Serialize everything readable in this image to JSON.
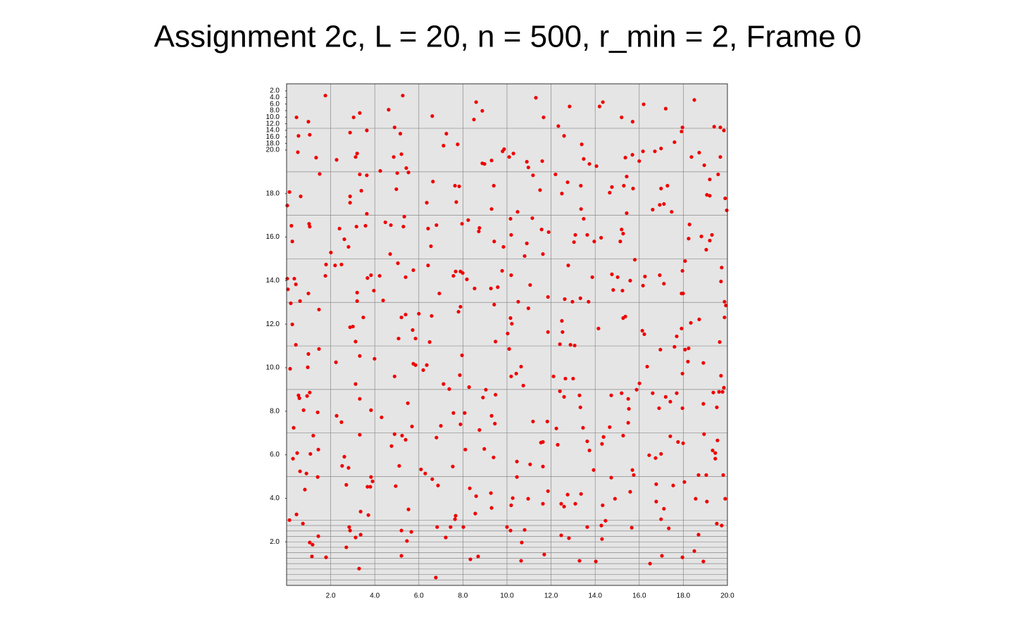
{
  "chart_data": {
    "type": "scatter",
    "title": "Assignment 2c, L = 20, n = 500, r_min = 2, Frame 0",
    "xlim": [
      0,
      20
    ],
    "ylim": [
      0,
      23.04
    ],
    "xticks": [
      {
        "value": 2,
        "label": "2.0"
      },
      {
        "value": 4,
        "label": "4.0"
      },
      {
        "value": 6,
        "label": "6.0"
      },
      {
        "value": 8,
        "label": "8.0"
      },
      {
        "value": 10,
        "label": "10.0"
      },
      {
        "value": 12,
        "label": "12.0"
      },
      {
        "value": 14,
        "label": "14.0"
      },
      {
        "value": 16,
        "label": "16.0"
      },
      {
        "value": 18,
        "label": "18.0"
      },
      {
        "value": 20,
        "label": "20.0"
      }
    ],
    "yticks": [
      {
        "value": 2,
        "label": "2.0"
      },
      {
        "value": 4,
        "label": "4.0"
      },
      {
        "value": 6,
        "label": "6.0"
      },
      {
        "value": 8,
        "label": "8.0"
      },
      {
        "value": 10,
        "label": "10.0"
      },
      {
        "value": 12,
        "label": "12.0"
      },
      {
        "value": 14,
        "label": "14.0"
      },
      {
        "value": 16,
        "label": "16.0"
      },
      {
        "value": 18,
        "label": "18.0"
      }
    ],
    "y2lim": [
      152.4,
      -0.14
    ],
    "y2ticks": [
      {
        "value": 2,
        "label": "2.0"
      },
      {
        "value": 4,
        "label": "4.0"
      },
      {
        "value": 6,
        "label": "6.0"
      },
      {
        "value": 8,
        "label": "8.0"
      },
      {
        "value": 10,
        "label": "10.0"
      },
      {
        "value": 12,
        "label": "12.0"
      },
      {
        "value": 14,
        "label": "14.0"
      },
      {
        "value": 16,
        "label": "16.0"
      },
      {
        "value": 18,
        "label": "18.0"
      },
      {
        "value": 20,
        "label": "20.0"
      }
    ],
    "hgrid": [
      0.25,
      0.5,
      0.75,
      1,
      1.25,
      1.5,
      1.75,
      2,
      2.25,
      2.5,
      2.75,
      3,
      5,
      7,
      9,
      11,
      13,
      15,
      17,
      19,
      21
    ],
    "grid": true,
    "color": "#ee0000",
    "x": [
      1.76,
      5.27,
      11.31,
      18.5,
      14.35,
      8.6,
      16.2,
      12.84,
      14.2,
      8.88,
      17.2,
      4.63,
      6.61,
      3.04,
      0.45,
      15.2,
      11.66,
      3.32,
      8.5,
      15.7,
      0.99,
      19.4,
      19.68,
      19.84,
      12.33,
      17.96,
      4.9,
      3.64,
      2.88,
      7.25,
      5.16,
      17.92,
      0.54,
      1.05,
      12.59,
      17.6,
      7.76,
      7.12,
      13.39,
      16.99,
      9.87,
      0.51,
      16.71,
      16.17,
      3.2,
      18.72,
      5.21,
      10.29,
      15.69,
      9.8,
      4.86,
      3.13,
      10.1,
      2.27,
      1.34,
      15.37,
      18.37,
      19.68,
      13.48,
      16.0,
      10.9,
      11.6,
      9.3,
      13.74,
      8.88,
      8.98,
      10.97,
      18.95,
      14.06,
      5.43,
      4.25,
      5.53,
      5.02,
      1.5,
      3.32,
      3.64,
      11.18,
      12.2,
      19.58,
      15.43,
      19.2,
      9.4,
      6.64,
      12.75,
      13.35,
      7.64,
      7.83,
      15.3,
      14.76,
      4.98,
      15.72,
      16.99,
      17.28,
      11.5,
      0.13,
      12.49,
      14.66,
      3.39,
      0.64,
      2.88,
      19.07,
      19.2,
      19.9,
      7.7,
      6.36,
      2.88,
      16.93,
      17.12,
      0.03,
      19.97,
      13.36,
      9.3,
      3.64,
      17.47,
      10.48,
      15.43,
      16.61,
      5.34,
      13.48,
      11.15,
      8.24,
      10.16,
      7.96,
      4.48,
      6.8,
      18.28,
      1.02,
      1.05,
      0.22,
      4.73,
      3.17,
      3.58,
      5.3,
      15.2,
      2.4,
      6.42,
      8.75,
      11.57,
      8.72,
      11.89,
      15.27,
      13.1,
      19.3,
      13.64,
      10.19,
      14.27,
      18.82,
      18.24,
      2.62,
      19.2,
      13.96,
      0.26,
      9.42,
      13.04,
      15.14,
      10.9,
      9.84,
      2.81,
      6.55,
      19.04,
      11.63,
      4.7,
      2.01,
      10.8,
      15.8,
      18.08,
      5.05,
      2.2,
      2.49,
      1.79,
      6.42,
      12.78,
      19.74,
      5.75,
      17.96,
      7.67,
      7.89,
      9.78,
      7.57,
      7.99,
      14.76,
      16.93,
      3.83,
      4.22,
      16.26,
      1.76,
      10.19,
      13.87,
      15.02,
      15.59,
      5.4,
      0.03,
      0.35,
      3.67,
      8.18,
      19.71,
      17.12,
      0.42,
      16.17,
      9.58,
      11.05,
      8.53,
      14.82,
      9.27,
      15.24,
      0.06,
      3.96,
      17.92,
      0.99,
      3.2,
      17.99,
      6.93,
      11.86,
      13.33,
      12.62,
      0.19,
      0.61,
      4.38,
      3.2,
      12.97,
      13.7,
      19.87,
      10.51,
      19.93,
      7.89,
      9.42,
      10.97,
      1.47,
      7.8,
      6.0,
      6.58,
      3.48,
      5.21,
      15.27,
      15.37,
      19.87,
      5.4,
      18.72,
      10.16,
      12.49,
      18.34,
      10.22,
      0.26,
      14.15,
      17.92,
      2.88,
      3.01,
      16.14,
      5.72,
      10.03,
      12.52,
      16.23,
      11.86,
      17.7,
      5.08,
      5.85,
      3.13,
      9.48,
      19.65,
      12.4,
      12.88,
      13.07,
      0.42,
      6.49,
      18.24,
      18.08,
      1.47,
      17.6,
      16.96,
      10.1,
      7.96,
      3.32,
      0.99,
      3.99,
      18.21,
      18.91,
      2.24,
      5.75,
      5.85,
      16.36,
      6.36,
      10.64,
      0.16,
      0.96,
      6.2,
      10.42,
      10.19,
      4.9,
      7.86,
      12.11,
      17.96,
      19.71,
      12.65,
      13.0,
      16.01,
      3.13,
      7.12,
      10.74,
      19.84,
      15.88,
      7.38,
      8.28,
      9.04,
      13.29,
      12.4,
      19.62,
      19.78,
      19.36,
      9.48,
      1.05,
      0.93,
      0.54,
      0.58,
      12.59,
      17.7,
      16.61,
      17.2,
      15.2,
      14.73,
      8.91,
      15.5,
      3.32,
      17.41,
      5.5,
      18.91,
      3.83,
      0.77,
      15.53,
      17.96,
      19.52,
      13.33,
      16.9,
      1.41,
      7.57,
      8.08,
      9.3,
      2.27,
      4.31,
      2.49,
      7.89,
      9.45,
      11.83,
      11.18,
      15.5,
      5.69,
      7.0,
      0.32,
      14.66,
      13.45,
      12.24,
      8.75,
      1.21,
      3.32,
      4.9,
      5.24,
      17.41,
      18.94,
      6.8,
      15.27,
      5.4,
      19.55,
      11.63,
      11.54,
      14.38,
      13.64,
      17.76,
      14.31,
      17.99,
      12.3,
      4.76,
      13.74,
      19.33,
      8.11,
      8.97,
      19.45,
      0.48,
      1.44,
      1.08,
      16.99,
      16.45,
      0.29,
      16.74,
      2.62,
      9.39,
      19.45,
      10.45,
      6.1,
      5.11,
      11.63,
      11.05,
      7.54,
      2.52,
      2.81,
      13.93,
      15.69,
      0.61,
      6.29,
      15.75,
      0.9,
      18.69,
      19.04,
      19.81,
      10.45,
      3.83,
      1.41,
      14.73,
      6.61,
      3.9,
      6.87,
      2.71,
      3.8,
      3.67,
      4.95,
      16.77,
      17.54,
      18.05,
      0.83,
      8.31,
      15.59,
      11.86,
      9.27,
      12.75,
      13.36,
      8.6,
      10.26,
      10.96,
      14.9,
      18.56,
      19.9,
      16.77,
      19.07,
      11.63,
      12.46,
      13.1,
      10.19,
      14.34,
      12.59,
      9.3,
      5.53,
      17.12,
      3.36,
      8.56,
      0.45,
      3.71,
      7.67,
      7.64,
      16.99,
      0.13,
      14.47,
      0.74,
      19.52,
      19.74,
      2.84,
      6.83,
      8.02,
      10.0,
      13.64,
      14.28,
      15.66,
      7.44,
      10.16,
      10.8,
      17.34,
      2.88,
      5.66,
      5.21,
      12.46,
      18.69,
      3.36,
      1.44,
      3.13,
      7.22,
      12.81,
      14.31,
      5.46,
      10.67,
      1.05,
      1.18,
      2.71,
      18.5,
      11.69,
      5.21,
      17.03,
      1.15,
      1.79,
      8.69,
      17.96,
      8.34,
      10.64,
      13.29,
      14.03,
      18.91,
      16.49,
      3.29,
      6.77
    ],
    "y": [
      22.5,
      22.5,
      22.4,
      22.3,
      22.2,
      22.2,
      22.1,
      22.0,
      22.0,
      21.8,
      21.9,
      21.85,
      21.56,
      21.5,
      21.5,
      21.5,
      21.5,
      21.7,
      21.4,
      21.3,
      21.3,
      21.07,
      21.04,
      20.9,
      21.1,
      21.04,
      21.04,
      20.9,
      20.8,
      20.75,
      20.75,
      20.85,
      20.65,
      20.7,
      20.65,
      20.36,
      20.26,
      20.2,
      20.26,
      20.07,
      20.04,
      19.9,
      19.94,
      19.94,
      19.84,
      19.88,
      19.81,
      19.84,
      19.78,
      19.94,
      19.68,
      19.68,
      19.68,
      19.55,
      19.65,
      19.65,
      19.68,
      19.68,
      19.59,
      19.49,
      19.46,
      19.49,
      19.52,
      19.36,
      19.39,
      19.36,
      19.2,
      19.3,
      19.26,
      19.17,
      19.04,
      18.97,
      18.94,
      18.9,
      18.88,
      18.84,
      18.84,
      18.88,
      18.88,
      18.78,
      18.65,
      18.36,
      18.55,
      18.52,
      18.36,
      18.36,
      18.33,
      18.36,
      18.3,
      18.2,
      18.23,
      18.23,
      18.36,
      18.16,
      18.07,
      18.0,
      18.04,
      18.13,
      17.87,
      17.87,
      17.94,
      17.9,
      17.78,
      17.61,
      17.58,
      17.58,
      17.48,
      17.52,
      17.45,
      17.23,
      17.29,
      17.29,
      17.07,
      17.16,
      17.16,
      17.1,
      17.26,
      16.94,
      16.84,
      16.87,
      16.78,
      16.84,
      16.61,
      16.68,
      16.55,
      16.58,
      16.61,
      16.48,
      16.52,
      16.55,
      16.48,
      16.52,
      16.48,
      16.35,
      16.39,
      16.39,
      16.42,
      16.35,
      16.26,
      16.23,
      16.16,
      16.1,
      16.1,
      16.1,
      16.1,
      15.97,
      16.03,
      15.93,
      15.9,
      15.84,
      15.8,
      15.8,
      15.8,
      15.77,
      15.8,
      15.71,
      15.55,
      15.55,
      15.58,
      15.42,
      15.22,
      15.22,
      15.29,
      15.13,
      14.96,
      14.9,
      14.8,
      14.7,
      14.74,
      14.74,
      14.7,
      14.7,
      14.6,
      14.48,
      14.45,
      14.42,
      14.42,
      14.45,
      14.22,
      14.35,
      14.29,
      14.25,
      14.25,
      14.22,
      14.19,
      14.22,
      14.25,
      14.16,
      14.16,
      14.0,
      14.16,
      14.09,
      14.09,
      14.12,
      14.06,
      13.96,
      13.86,
      13.83,
      13.77,
      13.7,
      13.8,
      13.64,
      13.57,
      13.64,
      13.54,
      13.6,
      13.54,
      13.41,
      13.41,
      13.45,
      13.41,
      13.41,
      13.25,
      13.19,
      13.15,
      12.96,
      13.06,
      13.09,
      13.06,
      13.03,
      13.03,
      13.03,
      13.03,
      12.86,
      12.8,
      12.9,
      12.73,
      12.67,
      12.57,
      12.48,
      12.38,
      12.31,
      12.31,
      12.28,
      12.35,
      12.31,
      12.44,
      12.22,
      12.28,
      12.15,
      12.06,
      12.02,
      11.99,
      11.8,
      11.8,
      11.86,
      11.89,
      11.7,
      11.73,
      11.57,
      11.64,
      11.54,
      11.64,
      11.44,
      11.34,
      11.34,
      11.2,
      11.2,
      11.18,
      11.08,
      11.05,
      11.02,
      11.05,
      11.18,
      10.89,
      10.83,
      10.86,
      10.96,
      10.83,
      10.86,
      10.57,
      10.54,
      10.63,
      10.41,
      10.28,
      10.22,
      10.25,
      10.18,
      10.12,
      10.05,
      10.12,
      10.05,
      9.95,
      10.02,
      9.89,
      9.73,
      9.6,
      9.6,
      9.66,
      9.6,
      9.73,
      9.63,
      9.5,
      9.5,
      9.28,
      9.25,
      9.25,
      9.18,
      9.08,
      8.99,
      9.02,
      9.11,
      8.99,
      8.73,
      8.92,
      8.89,
      8.89,
      8.86,
      8.76,
      8.86,
      8.7,
      8.73,
      8.6,
      8.66,
      8.83,
      8.83,
      8.66,
      8.83,
      8.73,
      8.63,
      8.57,
      8.57,
      8.44,
      8.37,
      8.34,
      8.05,
      8.05,
      8.11,
      8.14,
      8.18,
      8.18,
      8.14,
      7.95,
      7.92,
      7.92,
      7.79,
      7.79,
      7.72,
      7.5,
      7.4,
      7.43,
      7.53,
      7.53,
      7.47,
      7.3,
      7.33,
      7.24,
      7.27,
      7.24,
      7.21,
      7.14,
      6.88,
      6.92,
      6.95,
      6.88,
      6.85,
      6.95,
      6.79,
      6.88,
      6.69,
      6.66,
      6.59,
      6.56,
      6.82,
      6.62,
      6.59,
      6.5,
      6.53,
      6.46,
      6.4,
      6.2,
      6.2,
      6.24,
      6.27,
      6.08,
      6.08,
      6.24,
      6.04,
      6.04,
      5.98,
      5.82,
      5.85,
      5.91,
      5.88,
      5.82,
      5.69,
      5.33,
      5.49,
      5.46,
      5.56,
      5.46,
      5.49,
      5.4,
      5.3,
      5.3,
      5.24,
      5.14,
      5.07,
      5.14,
      5.07,
      5.07,
      5.07,
      4.98,
      4.98,
      4.98,
      4.95,
      4.88,
      4.78,
      4.59,
      4.62,
      4.53,
      4.53,
      4.56,
      4.65,
      4.59,
      4.75,
      4.4,
      4.46,
      4.3,
      4.33,
      4.24,
      4.17,
      4.2,
      4.1,
      4.01,
      3.98,
      3.98,
      3.98,
      3.98,
      3.85,
      3.85,
      3.75,
      3.75,
      3.75,
      3.68,
      3.68,
      3.62,
      3.56,
      3.49,
      3.52,
      3.39,
      3.3,
      3.26,
      3.23,
      3.2,
      3.04,
      3.04,
      3.0,
      2.97,
      2.84,
      2.84,
      2.75,
      2.68,
      2.68,
      2.68,
      2.68,
      2.68,
      2.75,
      2.65,
      2.68,
      2.52,
      2.55,
      2.62,
      2.52,
      2.46,
      2.52,
      2.3,
      2.33,
      2.33,
      2.26,
      2.2,
      2.2,
      2.17,
      2.13,
      2.04,
      1.97,
      1.97,
      1.87,
      1.75,
      1.58,
      1.42,
      1.36,
      1.36,
      1.33,
      1.29,
      1.33,
      1.29,
      1.2,
      1.13,
      1.13,
      1.1,
      1.1,
      1.0,
      0.77,
      0.36
    ]
  }
}
